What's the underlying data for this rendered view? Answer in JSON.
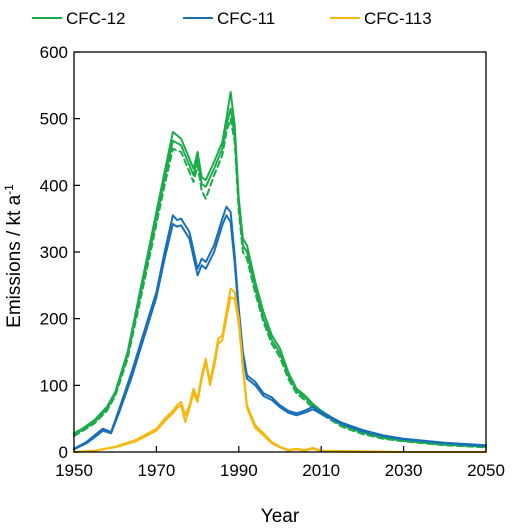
{
  "chart_data": {
    "type": "line",
    "xlabel": "Year",
    "ylabel": {
      "text": "Emissions / kt a",
      "superscript": "-1"
    },
    "xlim": [
      1950,
      2050
    ],
    "ylim": [
      0,
      600
    ],
    "xticks": [
      "1950",
      "1970",
      "1990",
      "2010",
      "2030",
      "2050"
    ],
    "yticks": [
      "0",
      "100",
      "200",
      "300",
      "400",
      "500",
      "600"
    ],
    "grid": false,
    "legend_position": "top",
    "series": [
      {
        "name": "CFC-12",
        "color": "#1aab4b",
        "lines": [
          {
            "style": "solid",
            "x": [
              1950,
              1952,
              1955,
              1958,
              1960,
              1963,
              1966,
              1969,
              1972,
              1974,
              1976,
              1978,
              1979,
              1980,
              1981,
              1982,
              1984,
              1986,
              1987,
              1988,
              1989,
              1990,
              1991,
              1992,
              1994,
              1996,
              1998,
              2000,
              2002,
              2004,
              2006,
              2008,
              2010,
              2015,
              2020,
              2025,
              2030,
              2040,
              2050
            ],
            "y": [
              28,
              35,
              48,
              68,
              90,
              150,
              240,
              330,
              420,
              480,
              470,
              440,
              425,
              450,
              412,
              408,
              435,
              465,
              500,
              540,
              490,
              380,
              320,
              310,
              255,
              210,
              175,
              155,
              120,
              95,
              85,
              72,
              62,
              42,
              30,
              22,
              18,
              12,
              8
            ]
          },
          {
            "style": "solid",
            "x": [
              1950,
              1952,
              1955,
              1958,
              1960,
              1963,
              1966,
              1969,
              1972,
              1974,
              1976,
              1978,
              1979,
              1980,
              1981,
              1982,
              1984,
              1986,
              1987,
              1988,
              1989,
              1990,
              1991,
              1992,
              1994,
              1996,
              1998,
              2000,
              2002,
              2004,
              2006,
              2008,
              2010,
              2015,
              2020,
              2025,
              2030,
              2040,
              2050
            ],
            "y": [
              26,
              33,
              45,
              65,
              87,
              145,
              232,
              320,
              410,
              467,
              460,
              430,
              415,
              440,
              402,
              398,
              425,
              455,
              490,
              515,
              475,
              370,
              310,
              300,
              245,
              200,
              168,
              148,
              115,
              92,
              82,
              70,
              60,
              40,
              29,
              21,
              17,
              11,
              8
            ]
          },
          {
            "style": "dashed",
            "x": [
              1950,
              1952,
              1955,
              1958,
              1960,
              1963,
              1966,
              1969,
              1972,
              1974,
              1976,
              1978,
              1979,
              1980,
              1981,
              1982,
              1984,
              1986,
              1987,
              1988,
              1989,
              1990,
              1991,
              1992,
              1994,
              1996,
              1998,
              2000,
              2002,
              2004,
              2006,
              2008,
              2010,
              2015,
              2020,
              2025,
              2030,
              2040,
              2050
            ],
            "y": [
              24,
              31,
              43,
              62,
              84,
              140,
              225,
              312,
              400,
              455,
              450,
              420,
              405,
              430,
              392,
              380,
              415,
              445,
              480,
              500,
              465,
              360,
              300,
              290,
              238,
              195,
              162,
              142,
              110,
              88,
              78,
              66,
              57,
              38,
              27,
              20,
              16,
              10,
              7
            ]
          }
        ]
      },
      {
        "name": "CFC-11",
        "color": "#1a70b8",
        "lines": [
          {
            "style": "solid",
            "x": [
              1950,
              1953,
              1955,
              1957,
              1959,
              1961,
              1964,
              1967,
              1970,
              1972,
              1974,
              1975,
              1976,
              1978,
              1980,
              1981,
              1982,
              1984,
              1986,
              1987,
              1988,
              1989,
              1990,
              1991,
              1992,
              1994,
              1996,
              1998,
              2000,
              2002,
              2004,
              2006,
              2008,
              2010,
              2015,
              2020,
              2025,
              2030,
              2040,
              2050
            ],
            "y": [
              5,
              15,
              25,
              35,
              30,
              65,
              120,
              180,
              240,
              300,
              355,
              348,
              350,
              330,
              275,
              290,
              285,
              310,
              350,
              368,
              360,
              295,
              215,
              150,
              115,
              105,
              88,
              82,
              70,
              62,
              58,
              62,
              68,
              60,
              44,
              33,
              25,
              20,
              14,
              10
            ]
          },
          {
            "style": "solid",
            "x": [
              1950,
              1953,
              1955,
              1957,
              1959,
              1961,
              1964,
              1967,
              1970,
              1972,
              1974,
              1975,
              1976,
              1978,
              1980,
              1981,
              1982,
              1984,
              1986,
              1987,
              1988,
              1989,
              1990,
              1991,
              1992,
              1994,
              1996,
              1998,
              2000,
              2002,
              2004,
              2006,
              2008,
              2010,
              2015,
              2020,
              2025,
              2030,
              2040,
              2050
            ],
            "y": [
              4,
              13,
              22,
              32,
              28,
              60,
              112,
              172,
              232,
              290,
              342,
              338,
              340,
              320,
              265,
              280,
              275,
              300,
              340,
              355,
              345,
              283,
              205,
              143,
              110,
              100,
              84,
              78,
              67,
              59,
              55,
              59,
              64,
              57,
              42,
              31,
              24,
              19,
              13,
              9
            ]
          }
        ]
      },
      {
        "name": "CFC-113",
        "color": "#f5b80f",
        "lines": [
          {
            "style": "solid",
            "x": [
              1950,
              1955,
              1960,
              1965,
              1970,
              1972,
              1974,
              1975,
              1976,
              1977,
              1978,
              1979,
              1980,
              1981,
              1982,
              1983,
              1984,
              1985,
              1986,
              1987,
              1988,
              1989,
              1990,
              1991,
              1992,
              1994,
              1996,
              1998,
              2000,
              2002,
              2004,
              2006,
              2008,
              2010,
              2020,
              2030,
              2040,
              2050
            ],
            "y": [
              0,
              2,
              8,
              18,
              35,
              50,
              62,
              70,
              75,
              55,
              70,
              95,
              80,
              115,
              140,
              105,
              135,
              170,
              175,
              210,
              245,
              240,
              200,
              130,
              70,
              40,
              28,
              15,
              8,
              3,
              5,
              3,
              6,
              2,
              1,
              0,
              0,
              0
            ]
          },
          {
            "style": "solid",
            "x": [
              1950,
              1955,
              1960,
              1965,
              1970,
              1972,
              1974,
              1975,
              1976,
              1977,
              1978,
              1979,
              1980,
              1981,
              1982,
              1983,
              1984,
              1985,
              1986,
              1987,
              1988,
              1989,
              1990,
              1991,
              1992,
              1994,
              1996,
              1998,
              2000,
              2002,
              2004,
              2006,
              2008,
              2010,
              2020,
              2030,
              2040,
              2050
            ],
            "y": [
              0,
              2,
              7,
              16,
              32,
              46,
              58,
              66,
              70,
              45,
              65,
              88,
              75,
              110,
              135,
              100,
              128,
              162,
              168,
              200,
              232,
              230,
              192,
              124,
              66,
              36,
              25,
              13,
              7,
              2,
              4,
              2,
              5,
              1,
              0,
              0,
              0,
              0
            ]
          }
        ]
      }
    ]
  }
}
